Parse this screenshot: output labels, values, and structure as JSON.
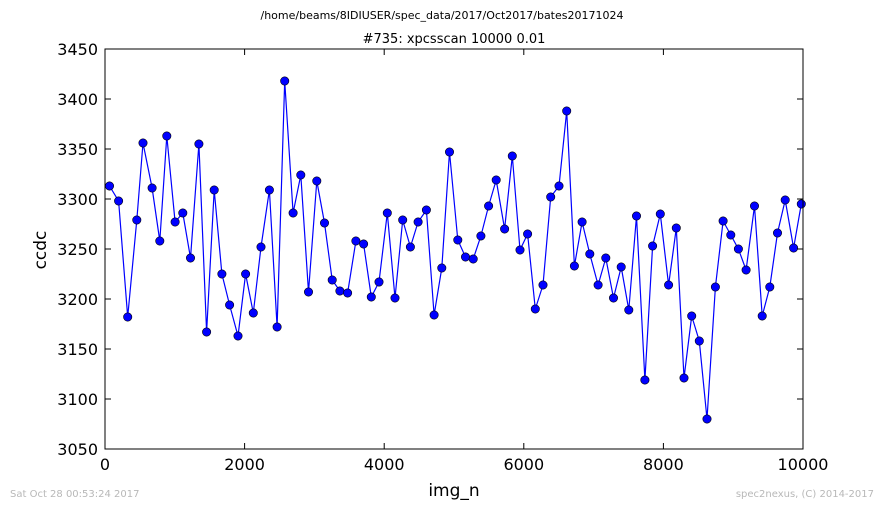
{
  "figure": {
    "suptitle": "/home/beams/8IDIUSER/spec_data/2017/Oct2017/bates20171024",
    "footer_left": "Sat Oct 28 00:53:24 2017",
    "footer_right": "spec2nexus, (C) 2014-2017"
  },
  "chart_data": {
    "type": "line",
    "title": "#735: xpcsscan 10000 0.01",
    "xlabel": "img_n",
    "ylabel": "ccdc",
    "xlim": [
      0,
      10000
    ],
    "ylim": [
      3050,
      3450
    ],
    "xticks": [
      0,
      2000,
      4000,
      6000,
      8000,
      10000
    ],
    "yticks": [
      3050,
      3100,
      3150,
      3200,
      3250,
      3300,
      3350,
      3400,
      3450
    ],
    "grid": false,
    "line_color": "#0000ff",
    "marker": "circle",
    "series": [
      {
        "x": [
          65,
          195,
          325,
          455,
          545,
          675,
          785,
          885,
          1005,
          1115,
          1225,
          1345,
          1455,
          1565,
          1675,
          1785,
          1905,
          2015,
          2125,
          2235,
          2355,
          2465,
          2575,
          2695,
          2805,
          2915,
          3035,
          3145,
          3255,
          3365,
          3475,
          3595,
          3705,
          3815,
          3925,
          4045,
          4155,
          4265,
          4375,
          4485,
          4605,
          4715,
          4825,
          4935,
          5055,
          5165,
          5275,
          5385,
          5495,
          5605,
          5725,
          5835,
          5945,
          6055,
          6165,
          6275,
          6385,
          6505,
          6615,
          6725,
          6835,
          6945,
          7065,
          7175,
          7285,
          7395,
          7505,
          7615,
          7735,
          7845,
          7955,
          8075,
          8185,
          8295,
          8405,
          8515,
          8625,
          8745,
          8855,
          8965,
          9075,
          9185,
          9305,
          9415,
          9525,
          9635,
          9745,
          9865,
          9975
        ],
        "y": [
          3313,
          3298,
          3182,
          3279,
          3356,
          3311,
          3258,
          3363,
          3277,
          3286,
          3241,
          3355,
          3167,
          3309,
          3225,
          3194,
          3163,
          3225,
          3186,
          3252,
          3309,
          3172,
          3418,
          3286,
          3324,
          3207,
          3318,
          3276,
          3219,
          3208,
          3206,
          3258,
          3255,
          3202,
          3217,
          3286,
          3201,
          3279,
          3252,
          3277,
          3289,
          3184,
          3231,
          3347,
          3259,
          3242,
          3240,
          3263,
          3293,
          3319,
          3270,
          3343,
          3249,
          3265,
          3190,
          3214,
          3302,
          3313,
          3388,
          3233,
          3277,
          3245,
          3214,
          3241,
          3201,
          3232,
          3189,
          3283,
          3119,
          3253,
          3285,
          3214,
          3271,
          3121,
          3183,
          3158,
          3080,
          3212,
          3278,
          3264,
          3250,
          3229,
          3293,
          3183,
          3212,
          3266,
          3299,
          3251,
          3295
        ]
      }
    ]
  }
}
